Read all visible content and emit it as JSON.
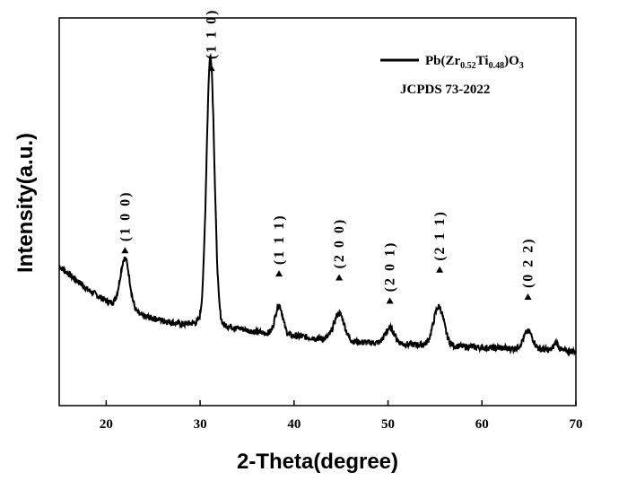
{
  "chart_data": {
    "type": "line",
    "xlabel": "2-Theta(degree)",
    "ylabel": "Intensity(a.u.)",
    "xlim": [
      15,
      70
    ],
    "ylim": [
      0,
      100
    ],
    "x_ticks": [
      20,
      30,
      40,
      50,
      60,
      70
    ],
    "y_ticks_labeled": false,
    "grid": false,
    "legend": {
      "placement": "top-right",
      "label_parts": [
        {
          "text": "Pb(Zr",
          "sub": false
        },
        {
          "text": "0.52",
          "sub": true
        },
        {
          "text": "Ti",
          "sub": false
        },
        {
          "text": "0.48",
          "sub": true
        },
        {
          "text": ")O",
          "sub": false
        },
        {
          "text": "3",
          "sub": true
        }
      ],
      "reference": "JCPDS 73-2022"
    },
    "series": [
      {
        "line_color": "#000000",
        "baseline": [
          [
            15,
            36
          ],
          [
            18,
            30
          ],
          [
            20,
            27
          ],
          [
            24,
            23
          ],
          [
            28,
            21
          ],
          [
            30,
            21.5
          ],
          [
            32,
            21
          ],
          [
            36,
            19
          ],
          [
            40,
            18
          ],
          [
            46,
            16.5
          ],
          [
            50,
            16
          ],
          [
            56,
            15.5
          ],
          [
            60,
            15
          ],
          [
            66,
            14.5
          ],
          [
            70,
            14
          ]
        ],
        "peaks": [
          {
            "x": 22.0,
            "height": 13,
            "width": 0.5
          },
          {
            "x": 31.1,
            "height": 69,
            "width": 0.42
          },
          {
            "x": 38.4,
            "height": 7.5,
            "width": 0.4
          },
          {
            "x": 44.8,
            "height": 7,
            "width": 0.55
          },
          {
            "x": 50.2,
            "height": 4,
            "width": 0.5
          },
          {
            "x": 55.4,
            "height": 10,
            "width": 0.55
          },
          {
            "x": 64.9,
            "height": 4.5,
            "width": 0.5
          },
          {
            "x": 67.9,
            "height": 2,
            "width": 0.25
          }
        ]
      }
    ],
    "peak_labels": [
      {
        "x": 22.0,
        "y": 40,
        "label": "(1 0 0)"
      },
      {
        "x": 31.2,
        "y": 87,
        "label": "(1 1 0)"
      },
      {
        "x": 38.4,
        "y": 34,
        "label": "(1 1 1)"
      },
      {
        "x": 44.8,
        "y": 33,
        "label": "(2 0 0)"
      },
      {
        "x": 50.2,
        "y": 27,
        "label": "(2 0 1)"
      },
      {
        "x": 55.5,
        "y": 35,
        "label": "(2 1 1)"
      },
      {
        "x": 64.9,
        "y": 28,
        "label": "(0 2 2)"
      }
    ]
  }
}
